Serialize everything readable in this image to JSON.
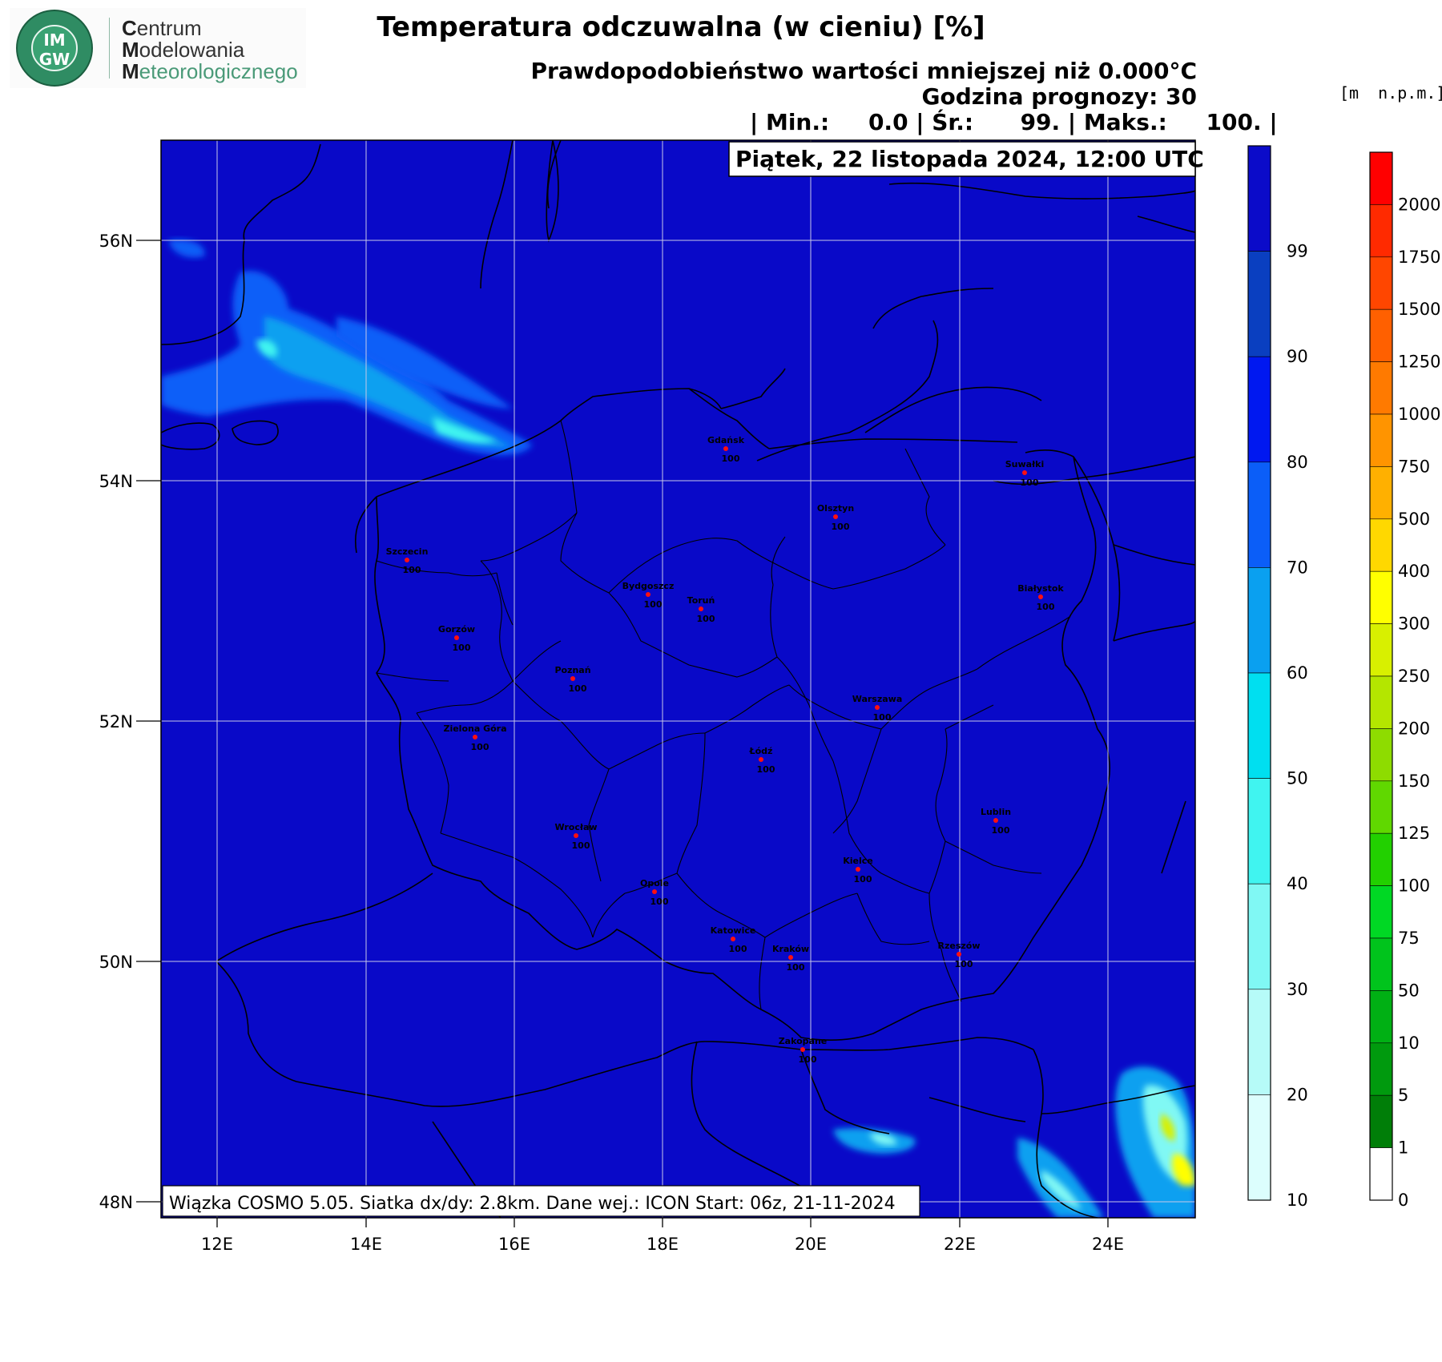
{
  "logo": {
    "abbr_top": "IM",
    "abbr_bottom": "GW",
    "lines": [
      {
        "initial": "C",
        "rest": "entrum"
      },
      {
        "initial": "M",
        "rest": "odelowania"
      },
      {
        "initial": "M",
        "rest": "eteorologicznego"
      }
    ]
  },
  "header": {
    "title": "Temperatura odczuwalna (w cieniu) [%]",
    "probability": "Prawdopodobieństwo wartości mniejszej niż 0.000°C",
    "forecast_hour": "Godzina prognozy: 30",
    "stats": "| Min.:     0.0 | Śr.:      99. | Maks.:     100. |",
    "date": "Piątek, 22 listopada 2024, 12:00 UTC"
  },
  "footer_note": "Wiązka COSMO 5.05. Siatka dx/dy: 2.8km. Dane wej.: ICON Start: 06z, 21-11-2024",
  "units_label": "[m  n.p.m.]",
  "map": {
    "lat_ticks": [
      "56N",
      "54N",
      "52N",
      "50N",
      "48N"
    ],
    "lon_ticks": [
      "12E",
      "14E",
      "16E",
      "18E",
      "20E",
      "22E",
      "24E"
    ],
    "background_color": "#0909c8",
    "cities": [
      {
        "name": "Gdańsk",
        "value": "100"
      },
      {
        "name": "Suwałki",
        "value": "100"
      },
      {
        "name": "Olsztyn",
        "value": "100"
      },
      {
        "name": "Szczecin",
        "value": "100"
      },
      {
        "name": "Bydgoszcz",
        "value": "100"
      },
      {
        "name": "Toruń",
        "value": "100"
      },
      {
        "name": "Białystok",
        "value": "100"
      },
      {
        "name": "Gorzów",
        "value": "100"
      },
      {
        "name": "Poznań",
        "value": "100"
      },
      {
        "name": "Warszawa",
        "value": "100"
      },
      {
        "name": "Zielona Góra",
        "value": "100"
      },
      {
        "name": "Łódź",
        "value": "100"
      },
      {
        "name": "Wrocław",
        "value": "100"
      },
      {
        "name": "Lublin",
        "value": "100"
      },
      {
        "name": "Kielce",
        "value": "100"
      },
      {
        "name": "Opole",
        "value": "100"
      },
      {
        "name": "Katowice",
        "value": "100"
      },
      {
        "name": "Kraków",
        "value": "100"
      },
      {
        "name": "Rzeszów",
        "value": "100"
      },
      {
        "name": "Zakopane",
        "value": "100"
      }
    ]
  },
  "probability_scale": {
    "labels": [
      "99",
      "90",
      "80",
      "70",
      "60",
      "50",
      "40",
      "30",
      "20",
      "10"
    ],
    "colors": [
      "#0b0bc9",
      "#0a3fc0",
      "#0018f0",
      "#0b5ef8",
      "#0aa0f0",
      "#00dff0",
      "#40f4f0",
      "#80f8f4",
      "#b6fbf8",
      "#dcfefd"
    ]
  },
  "elevation_scale": {
    "labels": [
      "2000",
      "1750",
      "1500",
      "1250",
      "1000",
      "750",
      "500",
      "400",
      "300",
      "250",
      "200",
      "150",
      "125",
      "100",
      "75",
      "50",
      "10",
      "5",
      "1",
      "0"
    ],
    "colors": [
      "#ff0000",
      "#ff2a00",
      "#ff4600",
      "#ff6000",
      "#ff7a00",
      "#ff9400",
      "#ffb000",
      "#ffd800",
      "#ffff00",
      "#d8f000",
      "#b4e600",
      "#8edc00",
      "#60d800",
      "#22d000",
      "#00d824",
      "#00c41c",
      "#00b014",
      "#009a0e",
      "#007e08",
      "#ffffff"
    ]
  }
}
